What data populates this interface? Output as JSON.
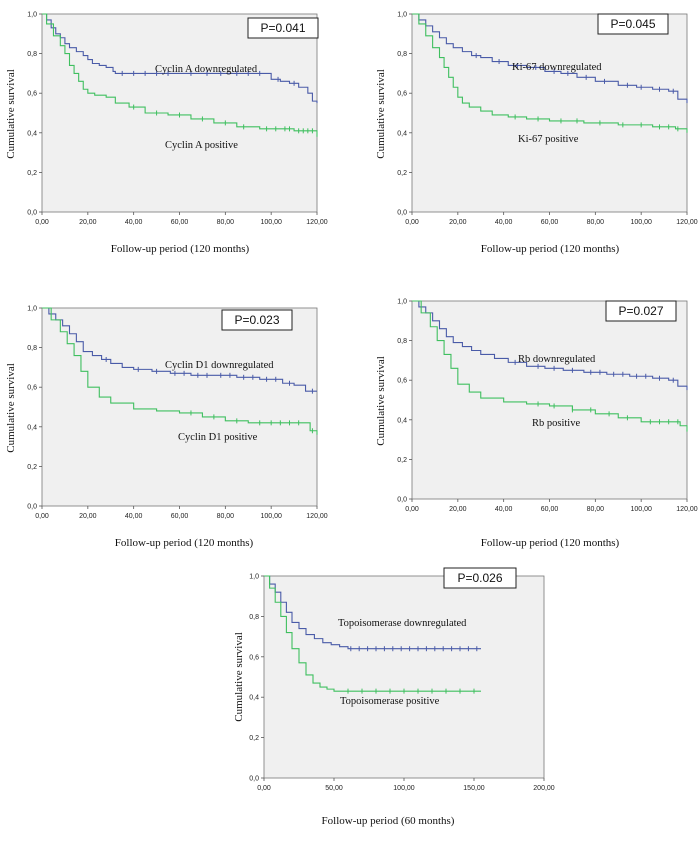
{
  "chart_data": [
    {
      "type": "line",
      "pvalue": "P=0.041",
      "xlabel": "Follow-up period (120 months)",
      "ylabel": "Cumulative survival",
      "xlim": [
        0,
        120
      ],
      "ylim": [
        0,
        1
      ],
      "x_ticks": [
        "0,00",
        "20,00",
        "40,00",
        "60,00",
        "80,00",
        "100,00",
        "120,00"
      ],
      "y_ticks": [
        "0,0",
        "0,2",
        "0,4",
        "0,6",
        "0,8",
        "1,0"
      ],
      "colors": [
        "#4a5ba8",
        "#3fbf5f"
      ],
      "series": [
        {
          "name": "Cyclin A downregulated",
          "label": "Cyclin A downregulated",
          "x": [
            0,
            2,
            4,
            6,
            8,
            10,
            12,
            15,
            18,
            20,
            22,
            25,
            28,
            31,
            32,
            60,
            70,
            80,
            98,
            100,
            104,
            108,
            112,
            116,
            118,
            120
          ],
          "y": [
            1.0,
            0.97,
            0.93,
            0.9,
            0.88,
            0.85,
            0.83,
            0.81,
            0.79,
            0.77,
            0.75,
            0.74,
            0.73,
            0.71,
            0.7,
            0.7,
            0.7,
            0.7,
            0.7,
            0.67,
            0.66,
            0.65,
            0.63,
            0.6,
            0.56,
            0.55
          ],
          "censors": [
            35,
            40,
            45,
            50,
            55,
            65,
            72,
            78,
            85,
            90,
            95,
            103,
            110
          ]
        },
        {
          "name": "Cyclin A positive",
          "label": "Cyclin A positive",
          "x": [
            0,
            2,
            5,
            8,
            10,
            12,
            14,
            16,
            18,
            20,
            23,
            28,
            32,
            38,
            45,
            55,
            65,
            75,
            85,
            95,
            105,
            110,
            120
          ],
          "y": [
            1.0,
            0.95,
            0.89,
            0.84,
            0.8,
            0.74,
            0.7,
            0.66,
            0.62,
            0.6,
            0.59,
            0.58,
            0.55,
            0.53,
            0.5,
            0.49,
            0.47,
            0.45,
            0.43,
            0.42,
            0.42,
            0.41,
            0.38
          ],
          "censors": [
            40,
            50,
            60,
            70,
            80,
            88,
            98,
            102,
            106,
            108,
            112,
            114,
            116,
            118
          ]
        }
      ]
    },
    {
      "type": "line",
      "pvalue": "P=0.045",
      "xlabel": "Follow-up period (120 months)",
      "ylabel": "Cumulative survival",
      "xlim": [
        0,
        120
      ],
      "ylim": [
        0,
        1
      ],
      "x_ticks": [
        "0,00",
        "20,00",
        "40,00",
        "60,00",
        "80,00",
        "100,00",
        "120,00"
      ],
      "y_ticks": [
        "0,0",
        "0,2",
        "0,4",
        "0,6",
        "0,8",
        "1,0"
      ],
      "colors": [
        "#4a5ba8",
        "#3fbf5f"
      ],
      "series": [
        {
          "name": "Ki-67 downregulated",
          "label": "Ki-67 downregulated",
          "x": [
            0,
            3,
            6,
            9,
            12,
            15,
            18,
            22,
            26,
            30,
            35,
            42,
            50,
            58,
            65,
            72,
            80,
            90,
            98,
            105,
            112,
            116,
            120
          ],
          "y": [
            1.0,
            0.97,
            0.94,
            0.91,
            0.88,
            0.85,
            0.83,
            0.81,
            0.79,
            0.78,
            0.76,
            0.74,
            0.73,
            0.71,
            0.7,
            0.68,
            0.66,
            0.64,
            0.63,
            0.62,
            0.61,
            0.57,
            0.55
          ],
          "censors": [
            28,
            38,
            46,
            54,
            62,
            68,
            76,
            84,
            94,
            100,
            108,
            114
          ]
        },
        {
          "name": "Ki-67 positive",
          "label": "Ki-67 positive",
          "x": [
            0,
            3,
            6,
            9,
            12,
            14,
            16,
            18,
            20,
            22,
            25,
            30,
            35,
            42,
            50,
            60,
            75,
            90,
            105,
            115,
            120
          ],
          "y": [
            1.0,
            0.95,
            0.89,
            0.83,
            0.78,
            0.73,
            0.68,
            0.63,
            0.58,
            0.55,
            0.53,
            0.51,
            0.49,
            0.48,
            0.47,
            0.46,
            0.45,
            0.44,
            0.43,
            0.42,
            0.4
          ],
          "censors": [
            45,
            55,
            65,
            72,
            82,
            92,
            100,
            108,
            112,
            116
          ]
        }
      ]
    },
    {
      "type": "line",
      "pvalue": "P=0.023",
      "xlabel": "Follow-up period (120 months)",
      "ylabel": "Cumulative survival",
      "xlim": [
        0,
        120
      ],
      "ylim": [
        0,
        1
      ],
      "x_ticks": [
        "0,00",
        "20,00",
        "40,00",
        "60,00",
        "80,00",
        "100,00",
        "120,00"
      ],
      "y_ticks": [
        "0,0",
        "0,2",
        "0,4",
        "0,6",
        "0,8",
        "1,0"
      ],
      "colors": [
        "#4a5ba8",
        "#3fbf5f"
      ],
      "series": [
        {
          "name": "Cyclin D1 downregulated",
          "label": "Cyclin D1 downregulated",
          "x": [
            0,
            3,
            6,
            9,
            12,
            15,
            18,
            22,
            26,
            30,
            35,
            40,
            48,
            56,
            65,
            75,
            85,
            95,
            105,
            110,
            115,
            120
          ],
          "y": [
            1.0,
            0.97,
            0.94,
            0.91,
            0.87,
            0.83,
            0.78,
            0.76,
            0.74,
            0.72,
            0.7,
            0.69,
            0.68,
            0.67,
            0.66,
            0.66,
            0.65,
            0.64,
            0.62,
            0.61,
            0.58,
            0.58
          ],
          "censors": [
            28,
            42,
            50,
            58,
            62,
            68,
            72,
            78,
            82,
            88,
            92,
            98,
            102,
            108,
            118
          ]
        },
        {
          "name": "Cyclin D1 positive",
          "label": "Cyclin D1 positive",
          "x": [
            0,
            4,
            8,
            11,
            14,
            17,
            20,
            25,
            30,
            40,
            50,
            60,
            70,
            80,
            90,
            100,
            110,
            117,
            120
          ],
          "y": [
            1.0,
            0.94,
            0.88,
            0.82,
            0.76,
            0.68,
            0.6,
            0.55,
            0.52,
            0.49,
            0.48,
            0.47,
            0.45,
            0.43,
            0.42,
            0.42,
            0.42,
            0.38,
            0.36
          ],
          "censors": [
            65,
            75,
            85,
            95,
            100,
            104,
            108,
            112,
            118
          ]
        }
      ]
    },
    {
      "type": "line",
      "pvalue": "P=0.027",
      "xlabel": "Follow-up period (120 months)",
      "ylabel": "Cumulative survival",
      "xlim": [
        0,
        120
      ],
      "ylim": [
        0,
        1
      ],
      "x_ticks": [
        "0,00",
        "20,00",
        "40,00",
        "60,00",
        "80,00",
        "100,00",
        "120,00"
      ],
      "y_ticks": [
        "0,0",
        "0,2",
        "0,4",
        "0,6",
        "0,8",
        "1,0"
      ],
      "colors": [
        "#4a5ba8",
        "#3fbf5f"
      ],
      "series": [
        {
          "name": "Rb downregulated",
          "label": "Rb downregulated",
          "x": [
            0,
            3,
            6,
            9,
            12,
            15,
            18,
            22,
            26,
            30,
            36,
            42,
            50,
            58,
            66,
            75,
            85,
            95,
            105,
            112,
            116,
            120
          ],
          "y": [
            1.0,
            0.97,
            0.94,
            0.9,
            0.86,
            0.82,
            0.79,
            0.77,
            0.75,
            0.73,
            0.71,
            0.69,
            0.67,
            0.66,
            0.65,
            0.64,
            0.63,
            0.62,
            0.61,
            0.6,
            0.57,
            0.55
          ],
          "censors": [
            45,
            55,
            62,
            70,
            78,
            82,
            88,
            92,
            98,
            102,
            108,
            114
          ]
        },
        {
          "name": "Rb positive",
          "label": "Rb positive",
          "x": [
            0,
            4,
            8,
            11,
            14,
            17,
            20,
            25,
            30,
            40,
            50,
            60,
            70,
            80,
            90,
            100,
            110,
            117,
            120
          ],
          "y": [
            1.0,
            0.94,
            0.87,
            0.8,
            0.73,
            0.66,
            0.58,
            0.54,
            0.51,
            0.49,
            0.48,
            0.47,
            0.45,
            0.43,
            0.41,
            0.39,
            0.39,
            0.37,
            0.34
          ],
          "censors": [
            55,
            62,
            70,
            78,
            86,
            94,
            104,
            108,
            112,
            116
          ]
        }
      ]
    },
    {
      "type": "line",
      "pvalue": "P=0.026",
      "xlabel": "Follow-up period (60 months)",
      "ylabel": "Cumulative survival",
      "xlim": [
        0,
        200
      ],
      "ylim": [
        0,
        1
      ],
      "x_ticks": [
        "0,00",
        "50,00",
        "100,00",
        "150,00",
        "200,00"
      ],
      "y_ticks": [
        "0,0",
        "0,2",
        "0,4",
        "0,6",
        "0,8",
        "1,0"
      ],
      "colors": [
        "#4a5ba8",
        "#3fbf5f"
      ],
      "series": [
        {
          "name": "Topoisomerase downregulated",
          "label": "Topoisomerase downregulated",
          "x": [
            0,
            4,
            8,
            12,
            16,
            20,
            25,
            30,
            36,
            42,
            48,
            54,
            60,
            155
          ],
          "y": [
            1.0,
            0.96,
            0.92,
            0.87,
            0.82,
            0.77,
            0.74,
            0.71,
            0.69,
            0.67,
            0.66,
            0.65,
            0.64,
            0.64
          ],
          "censors": [
            62,
            68,
            74,
            80,
            86,
            92,
            98,
            104,
            110,
            116,
            122,
            128,
            134,
            140,
            146,
            152
          ]
        },
        {
          "name": "Topoisomerase positive",
          "label": "Topoisomerase positive",
          "x": [
            0,
            4,
            8,
            12,
            16,
            20,
            25,
            30,
            35,
            40,
            45,
            50,
            155
          ],
          "y": [
            1.0,
            0.94,
            0.87,
            0.8,
            0.72,
            0.64,
            0.57,
            0.51,
            0.47,
            0.45,
            0.44,
            0.43,
            0.43
          ],
          "censors": [
            60,
            70,
            80,
            90,
            100,
            110,
            120,
            130,
            140,
            150
          ]
        }
      ]
    }
  ]
}
